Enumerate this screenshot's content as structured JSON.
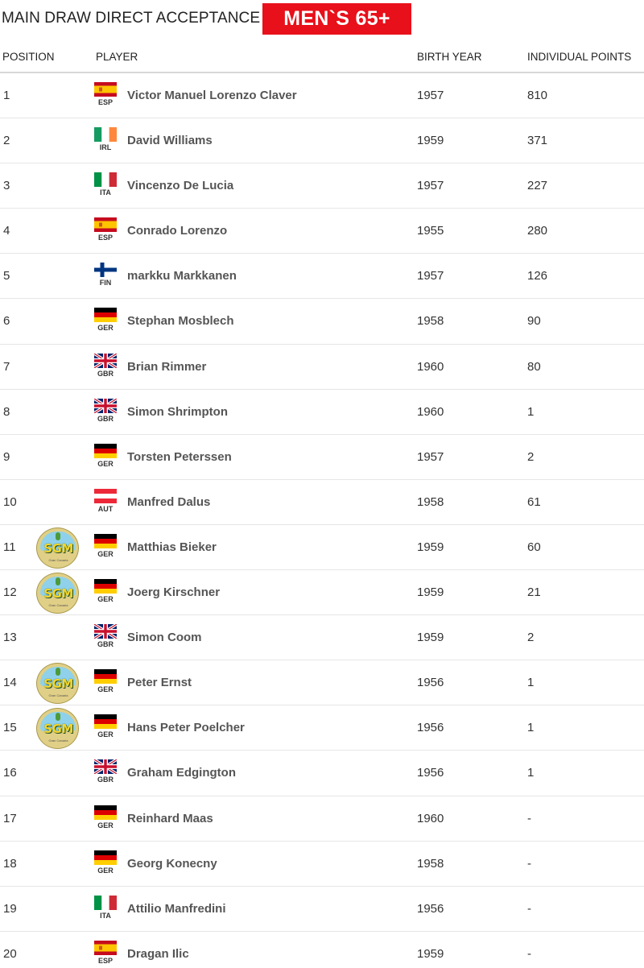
{
  "header": {
    "title": "MAIN DRAW DIRECT ACCEPTANCE",
    "category_badge": "MEN`S 65+"
  },
  "columns": {
    "position": "POSITION",
    "player": "PLAYER",
    "birth_year": "BIRTH YEAR",
    "points": "INDIVIDUAL POINTS"
  },
  "colors": {
    "badge_background": "#e8101a",
    "badge_text": "#ffffff"
  },
  "logo_text": "SGM",
  "logo_subtext": "Gran Canaria",
  "rows": [
    {
      "position": "1",
      "flag": "ESP",
      "name": "Victor Manuel Lorenzo Claver",
      "birth_year": "1957",
      "points": "810",
      "logo": false
    },
    {
      "position": "2",
      "flag": "IRL",
      "name": "David Williams",
      "birth_year": "1959",
      "points": "371",
      "logo": false
    },
    {
      "position": "3",
      "flag": "ITA",
      "name": "Vincenzo De Lucia",
      "birth_year": "1957",
      "points": "227",
      "logo": false
    },
    {
      "position": "4",
      "flag": "ESP",
      "name": "Conrado Lorenzo",
      "birth_year": "1955",
      "points": "280",
      "logo": false
    },
    {
      "position": "5",
      "flag": "FIN",
      "name": "markku Markkanen",
      "birth_year": "1957",
      "points": "126",
      "logo": false
    },
    {
      "position": "6",
      "flag": "GER",
      "name": "Stephan Mosblech",
      "birth_year": "1958",
      "points": "90",
      "logo": false
    },
    {
      "position": "7",
      "flag": "GBR",
      "name": "Brian Rimmer",
      "birth_year": "1960",
      "points": "80",
      "logo": false
    },
    {
      "position": "8",
      "flag": "GBR",
      "name": "Simon Shrimpton",
      "birth_year": "1960",
      "points": "1",
      "logo": false
    },
    {
      "position": "9",
      "flag": "GER",
      "name": "Torsten Peterssen",
      "birth_year": "1957",
      "points": "2",
      "logo": false
    },
    {
      "position": "10",
      "flag": "AUT",
      "name": "Manfred Dalus",
      "birth_year": "1958",
      "points": "61",
      "logo": false
    },
    {
      "position": "11",
      "flag": "GER",
      "name": "Matthias Bieker",
      "birth_year": "1959",
      "points": "60",
      "logo": true
    },
    {
      "position": "12",
      "flag": "GER",
      "name": "Joerg Kirschner",
      "birth_year": "1959",
      "points": "21",
      "logo": true
    },
    {
      "position": "13",
      "flag": "GBR",
      "name": "Simon Coom",
      "birth_year": "1959",
      "points": "2",
      "logo": false
    },
    {
      "position": "14",
      "flag": "GER",
      "name": "Peter Ernst",
      "birth_year": "1956",
      "points": "1",
      "logo": true
    },
    {
      "position": "15",
      "flag": "GER",
      "name": "Hans Peter Poelcher",
      "birth_year": "1956",
      "points": "1",
      "logo": true
    },
    {
      "position": "16",
      "flag": "GBR",
      "name": "Graham Edgington",
      "birth_year": "1956",
      "points": "1",
      "logo": false
    },
    {
      "position": "17",
      "flag": "GER",
      "name": "Reinhard Maas",
      "birth_year": "1960",
      "points": "-",
      "logo": false
    },
    {
      "position": "18",
      "flag": "GER",
      "name": "Georg Konecny",
      "birth_year": "1958",
      "points": "-",
      "logo": false
    },
    {
      "position": "19",
      "flag": "ITA",
      "name": "Attilio Manfredini",
      "birth_year": "1956",
      "points": "-",
      "logo": false
    },
    {
      "position": "20",
      "flag": "ESP",
      "name": "Dragan Ilic",
      "birth_year": "1959",
      "points": "-",
      "logo": false
    }
  ]
}
